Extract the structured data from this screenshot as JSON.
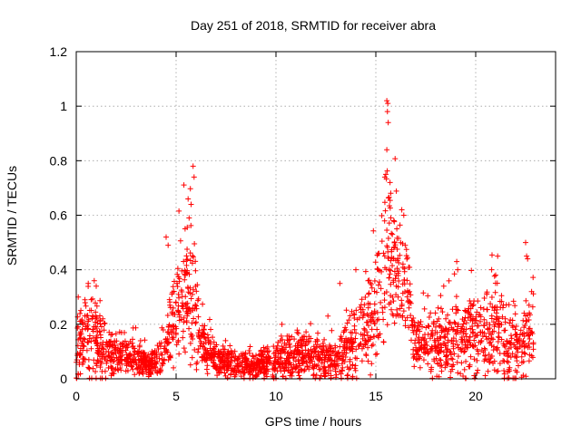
{
  "chart_data": {
    "type": "scatter",
    "title": "Day 251 of 2018, SRMTID for receiver abra",
    "xlabel": "GPS time / hours",
    "ylabel": "SRMTID / TECUs",
    "xlim": [
      0,
      24
    ],
    "ylim": [
      0,
      1.2
    ],
    "x_ticks": [
      0,
      5,
      10,
      15,
      20
    ],
    "x_tick_labels": [
      "0",
      "5",
      "10",
      "15",
      "20"
    ],
    "y_ticks": [
      0,
      0.2,
      0.4,
      0.6,
      0.8,
      1.0,
      1.2
    ],
    "y_tick_labels": [
      "0",
      "0.2",
      "0.4",
      "0.6",
      "0.8",
      "1",
      "1.2"
    ],
    "grid": true,
    "marker": "plus",
    "series_color": "#ff0000",
    "x_data_extent": [
      0,
      22.9
    ],
    "envelope": [
      {
        "x": 0.0,
        "base": 0.1,
        "spread": 0.12
      },
      {
        "x": 0.5,
        "base": 0.17,
        "spread": 0.14
      },
      {
        "x": 1.0,
        "base": 0.14,
        "spread": 0.16
      },
      {
        "x": 1.5,
        "base": 0.09,
        "spread": 0.08
      },
      {
        "x": 2.5,
        "base": 0.08,
        "spread": 0.07
      },
      {
        "x": 3.5,
        "base": 0.055,
        "spread": 0.05
      },
      {
        "x": 4.0,
        "base": 0.06,
        "spread": 0.06
      },
      {
        "x": 4.5,
        "base": 0.12,
        "spread": 0.12
      },
      {
        "x": 5.0,
        "base": 0.25,
        "spread": 0.17
      },
      {
        "x": 5.5,
        "base": 0.33,
        "spread": 0.22
      },
      {
        "x": 5.9,
        "base": 0.3,
        "spread": 0.3
      },
      {
        "x": 6.3,
        "base": 0.12,
        "spread": 0.09
      },
      {
        "x": 7.0,
        "base": 0.07,
        "spread": 0.06
      },
      {
        "x": 8.0,
        "base": 0.055,
        "spread": 0.05
      },
      {
        "x": 9.0,
        "base": 0.045,
        "spread": 0.045
      },
      {
        "x": 10.0,
        "base": 0.07,
        "spread": 0.08
      },
      {
        "x": 11.0,
        "base": 0.085,
        "spread": 0.08
      },
      {
        "x": 12.0,
        "base": 0.085,
        "spread": 0.08
      },
      {
        "x": 13.0,
        "base": 0.06,
        "spread": 0.06
      },
      {
        "x": 13.8,
        "base": 0.13,
        "spread": 0.12
      },
      {
        "x": 14.5,
        "base": 0.17,
        "spread": 0.15
      },
      {
        "x": 15.0,
        "base": 0.24,
        "spread": 0.18
      },
      {
        "x": 15.5,
        "base": 0.45,
        "spread": 0.3
      },
      {
        "x": 16.0,
        "base": 0.42,
        "spread": 0.22
      },
      {
        "x": 16.6,
        "base": 0.3,
        "spread": 0.15
      },
      {
        "x": 17.0,
        "base": 0.12,
        "spread": 0.09
      },
      {
        "x": 18.0,
        "base": 0.13,
        "spread": 0.12
      },
      {
        "x": 19.0,
        "base": 0.12,
        "spread": 0.14
      },
      {
        "x": 20.0,
        "base": 0.17,
        "spread": 0.16
      },
      {
        "x": 21.0,
        "base": 0.18,
        "spread": 0.16
      },
      {
        "x": 22.0,
        "base": 0.11,
        "spread": 0.13
      },
      {
        "x": 22.9,
        "base": 0.18,
        "spread": 0.14
      }
    ],
    "notable_points": [
      {
        "x": 5.85,
        "y": 0.78
      },
      {
        "x": 5.9,
        "y": 0.74
      },
      {
        "x": 5.6,
        "y": 0.66
      },
      {
        "x": 5.75,
        "y": 0.64
      },
      {
        "x": 5.65,
        "y": 0.59
      },
      {
        "x": 5.45,
        "y": 0.55
      },
      {
        "x": 4.5,
        "y": 0.52
      },
      {
        "x": 4.6,
        "y": 0.49
      },
      {
        "x": 15.55,
        "y": 1.02
      },
      {
        "x": 15.6,
        "y": 1.01
      },
      {
        "x": 15.58,
        "y": 0.98
      },
      {
        "x": 15.62,
        "y": 0.94
      },
      {
        "x": 15.55,
        "y": 0.84
      },
      {
        "x": 15.5,
        "y": 0.75
      },
      {
        "x": 15.45,
        "y": 0.74
      },
      {
        "x": 16.3,
        "y": 0.62
      },
      {
        "x": 16.4,
        "y": 0.6
      },
      {
        "x": 15.9,
        "y": 0.58
      },
      {
        "x": 16.05,
        "y": 0.55
      },
      {
        "x": 22.5,
        "y": 0.5
      },
      {
        "x": 22.55,
        "y": 0.45
      },
      {
        "x": 22.6,
        "y": 0.44
      },
      {
        "x": 21.1,
        "y": 0.45
      },
      {
        "x": 19.05,
        "y": 0.43
      },
      {
        "x": 19.1,
        "y": 0.4
      },
      {
        "x": 20.8,
        "y": 0.4
      },
      {
        "x": 21.0,
        "y": 0.38
      },
      {
        "x": 14.0,
        "y": 0.4
      },
      {
        "x": 0.9,
        "y": 0.36
      },
      {
        "x": 0.6,
        "y": 0.35
      },
      {
        "x": 1.0,
        "y": 0.34
      },
      {
        "x": 0.1,
        "y": 0.3
      },
      {
        "x": 13.2,
        "y": 0.35
      },
      {
        "x": 12.6,
        "y": 0.23
      },
      {
        "x": 10.3,
        "y": 0.2
      },
      {
        "x": 18.4,
        "y": 0.34
      },
      {
        "x": 22.8,
        "y": 0.32
      }
    ],
    "num_points": 2300
  }
}
